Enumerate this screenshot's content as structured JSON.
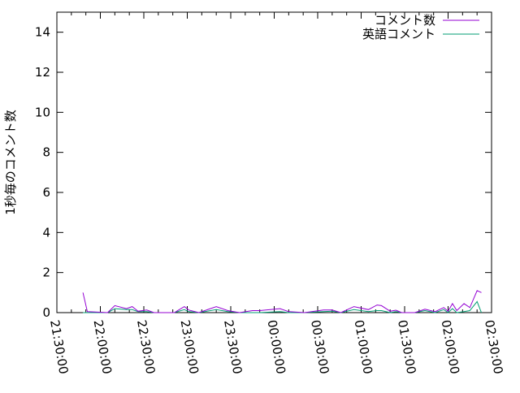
{
  "chart_data": {
    "type": "line",
    "title": "",
    "xlabel": "",
    "ylabel": "1秒毎のコメント数",
    "xlim": [
      "21:30:00",
      "02:30:00"
    ],
    "ylim": [
      0,
      15
    ],
    "x_ticks": [
      "21:30:00",
      "22:00:00",
      "22:30:00",
      "23:00:00",
      "23:30:00",
      "00:00:00",
      "00:30:00",
      "01:00:00",
      "01:30:00",
      "02:00:00",
      "02:30:00"
    ],
    "y_ticks": [
      0,
      2,
      4,
      6,
      8,
      10,
      12,
      14
    ],
    "grid": false,
    "legend_position": "top-right",
    "x": [
      "21:48",
      "21:51",
      "22:05",
      "22:10",
      "22:18",
      "22:22",
      "22:26",
      "22:32",
      "22:37",
      "22:51",
      "22:58",
      "23:01",
      "23:08",
      "23:20",
      "23:28",
      "23:36",
      "23:45",
      "23:50",
      "00:04",
      "00:10",
      "00:21",
      "00:34",
      "00:40",
      "00:46",
      "00:55",
      "01:05",
      "01:11",
      "01:14",
      "01:20",
      "01:24",
      "01:28",
      "01:37",
      "01:44",
      "01:51",
      "01:57",
      "02:00",
      "02:03",
      "02:06",
      "02:11",
      "02:15",
      "02:20",
      "02:23"
    ],
    "series": [
      {
        "name": "コメント数",
        "color": "#9400d3",
        "values": [
          1.0,
          0.05,
          0,
          0.35,
          0.2,
          0.3,
          0.07,
          0.13,
          0,
          0,
          0.3,
          0.13,
          0,
          0.3,
          0.1,
          0,
          0.1,
          0.1,
          0.2,
          0.05,
          0,
          0.13,
          0.13,
          0,
          0.3,
          0.15,
          0.38,
          0.35,
          0.07,
          0.12,
          0,
          0,
          0.17,
          0.05,
          0.25,
          0.07,
          0.45,
          0.1,
          0.45,
          0.25,
          1.1,
          1.0
        ]
      },
      {
        "name": "英語コメント",
        "color": "#009e73",
        "values": [
          0,
          0,
          0,
          0.2,
          0.15,
          0.15,
          0.05,
          0.05,
          0,
          0,
          0.15,
          0.05,
          0,
          0.15,
          0.05,
          0,
          0,
          0,
          0.05,
          0,
          0,
          0.05,
          0.07,
          0,
          0.15,
          0.05,
          0.1,
          0.1,
          0,
          0.05,
          0,
          0,
          0.1,
          0,
          0.15,
          0,
          0.2,
          0,
          0.05,
          0.1,
          0.55,
          0
        ]
      }
    ]
  }
}
